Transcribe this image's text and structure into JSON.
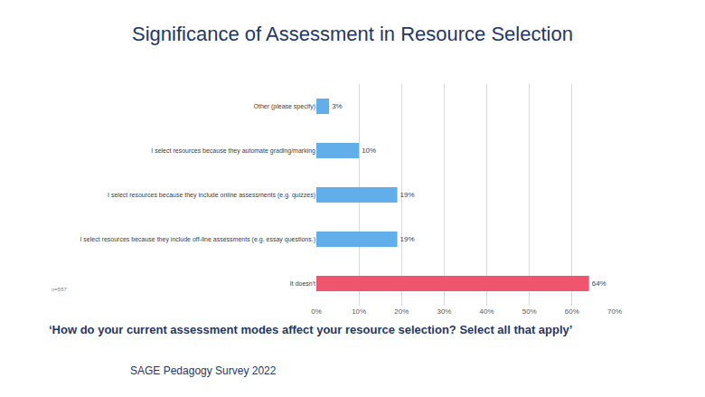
{
  "chart_data": {
    "type": "bar",
    "orientation": "horizontal",
    "title": "Significance of Assessment in Resource Selection",
    "categories": [
      "Other (please specify)",
      "I select resources because they automate grading/marking",
      "I select resources because they include online assessments (e.g. quizzes)",
      "I select resources because they include off-line assessments (e.g. essay questions.)",
      "It doesn't"
    ],
    "values": [
      3,
      10,
      19,
      19,
      64
    ],
    "value_labels": [
      "3%",
      "10%",
      "19%",
      "19%",
      "64%"
    ],
    "data_labels": true,
    "colors": [
      "#61aeea",
      "#61aeea",
      "#61aeea",
      "#61aeea",
      "#f0556e"
    ],
    "xlim": [
      0,
      70
    ],
    "xticks": [
      {
        "value": 0,
        "label": "0%"
      },
      {
        "value": 10,
        "label": "10%"
      },
      {
        "value": 20,
        "label": "20%"
      },
      {
        "value": 30,
        "label": "30%"
      },
      {
        "value": 40,
        "label": "40%"
      },
      {
        "value": 50,
        "label": "50%"
      },
      {
        "value": 60,
        "label": "60%"
      },
      {
        "value": 70,
        "label": "70%"
      }
    ],
    "grid": true,
    "annotations": [
      "n=557",
      "‘How do your current assessment modes affect your resource selection? Select all that apply’",
      "SAGE Pedagogy Survey 2022"
    ]
  }
}
